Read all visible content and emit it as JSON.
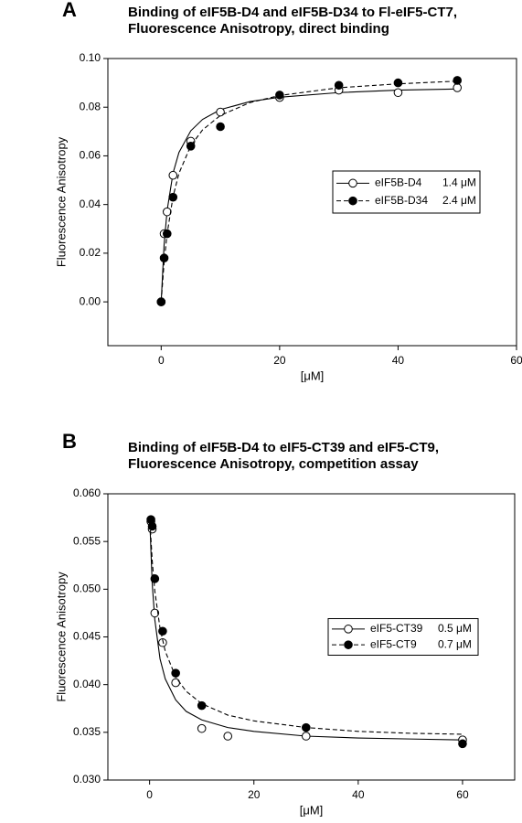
{
  "chart_data": [
    {
      "type": "scatter",
      "panel": "A",
      "title": [
        "Binding of eIF5B-D4 and eIF5B-D34 to Fl-eIF5-CT7,",
        "Fluorescence Anisotropy, direct binding"
      ],
      "xlabel": "[μM]",
      "ylabel": "Fluorescence Anisotropy",
      "xlim": [
        -9,
        60
      ],
      "ylim": [
        -0.018,
        0.1
      ],
      "xticks": [
        0,
        20,
        40,
        60
      ],
      "yticks": [
        {
          "value": 0,
          "label": "0.00"
        },
        0.02,
        0.04,
        0.06,
        0.08,
        {
          "value": 0.1,
          "label": "0.10"
        }
      ],
      "legend": "center right",
      "series": [
        {
          "name": "eIF5B-D4",
          "kd_label": "1.4 μM",
          "marker": "open",
          "line": "solid",
          "color": "#000000",
          "x": [
            0,
            0.5,
            1,
            2,
            5,
            10,
            20,
            30,
            40,
            50
          ],
          "values": [
            0,
            0.028,
            0.037,
            0.052,
            0.066,
            0.078,
            0.084,
            0.087,
            0.086,
            0.088
          ],
          "fit_x": [
            0,
            0.5,
            1,
            2,
            3,
            5,
            7,
            10,
            15,
            20,
            30,
            40,
            50
          ],
          "fit_values": [
            0,
            0.0237,
            0.0375,
            0.0529,
            0.0614,
            0.0703,
            0.075,
            0.079,
            0.0823,
            0.0841,
            0.086,
            0.087,
            0.0875
          ]
        },
        {
          "name": "eIF5B-D34",
          "kd_label": "2.4 μM",
          "marker": "filled",
          "line": "dashed",
          "color": "#000000",
          "x": [
            0,
            0.5,
            1,
            2,
            5,
            10,
            20,
            30,
            40,
            50
          ],
          "values": [
            0,
            0.018,
            0.028,
            0.043,
            0.064,
            0.072,
            0.085,
            0.089,
            0.09,
            0.091
          ],
          "fit_x": [
            0,
            0.5,
            1,
            2,
            3,
            5,
            7,
            10,
            15,
            20,
            30,
            40,
            50
          ],
          "fit_values": [
            0,
            0.0164,
            0.0279,
            0.0432,
            0.0528,
            0.0642,
            0.0707,
            0.0766,
            0.0819,
            0.0848,
            0.088,
            0.0896,
            0.0907
          ]
        }
      ]
    },
    {
      "type": "scatter",
      "panel": "B",
      "title": [
        "Binding of eIF5B-D4 to eIF5-CT39 and eIF5-CT9,",
        "Fluorescence Anisotropy, competition assay"
      ],
      "xlabel": "[μM]",
      "ylabel": "Fluorescence Anisotropy",
      "xlim": [
        -8,
        70
      ],
      "ylim": [
        0.03,
        0.06
      ],
      "xticks": [
        0,
        20,
        40,
        60
      ],
      "yticks": [
        {
          "value": 0.03,
          "label": "0.030"
        },
        0.035,
        {
          "value": 0.04,
          "label": "0.040"
        },
        0.045,
        {
          "value": 0.05,
          "label": "0.050"
        },
        0.055,
        {
          "value": 0.06,
          "label": "0.060"
        }
      ],
      "legend": "center right",
      "series": [
        {
          "name": "eIF5-CT39",
          "kd_label": "0.5 μM",
          "marker": "open",
          "line": "solid",
          "color": "#000000",
          "x": [
            0.25,
            0.5,
            1,
            2.5,
            5,
            10,
            15,
            30,
            60
          ],
          "values": [
            0.0571,
            0.0563,
            0.0475,
            0.0444,
            0.0402,
            0.0354,
            0.0346,
            0.0346,
            0.0342
          ],
          "fit_x": [
            0,
            0.5,
            1,
            2,
            3,
            5,
            7,
            10,
            15,
            20,
            30,
            40,
            50,
            60
          ],
          "fit_values": [
            0.0577,
            0.0506,
            0.0468,
            0.0427,
            0.0406,
            0.0384,
            0.0372,
            0.0363,
            0.0355,
            0.0351,
            0.0346,
            0.0344,
            0.0343,
            0.0342
          ]
        },
        {
          "name": "eIF5-CT9",
          "kd_label": "0.7 μM",
          "marker": "filled",
          "line": "dashed",
          "color": "#000000",
          "x": [
            0.25,
            0.5,
            1,
            2.5,
            5,
            10,
            30,
            60
          ],
          "values": [
            0.0573,
            0.0566,
            0.0511,
            0.0456,
            0.0412,
            0.0378,
            0.0355,
            0.0338
          ],
          "fit_x": [
            0,
            0.5,
            1,
            2,
            3,
            5,
            7,
            10,
            15,
            20,
            30,
            40,
            50,
            60
          ],
          "fit_values": [
            0.0577,
            0.053,
            0.0498,
            0.0459,
            0.0435,
            0.0408,
            0.0393,
            0.038,
            0.0368,
            0.0362,
            0.0355,
            0.0351,
            0.0349,
            0.0348
          ]
        }
      ]
    }
  ]
}
